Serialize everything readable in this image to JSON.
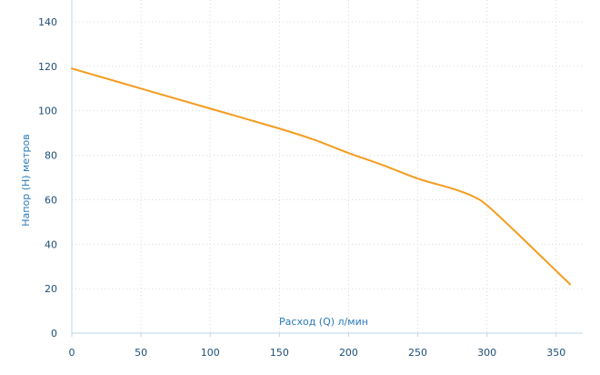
{
  "chart_data": {
    "type": "line",
    "title": "",
    "xlabel": "Расход (Q) л/мин",
    "ylabel": "Напор (H) метров",
    "xlim": [
      0,
      360
    ],
    "ylim": [
      0,
      140
    ],
    "xticks": [
      0,
      50,
      100,
      150,
      200,
      250,
      300,
      350
    ],
    "yticks": [
      0,
      20,
      40,
      60,
      80,
      100,
      120,
      140
    ],
    "grid": true,
    "legend": "none",
    "series": [
      {
        "color": "#f39c1f",
        "x": [
          0,
          50,
          100,
          150,
          175,
          200,
          225,
          250,
          275,
          290,
          300,
          320,
          340,
          360
        ],
        "y": [
          119,
          110,
          101,
          92,
          87,
          81,
          75.5,
          69.5,
          65,
          61.5,
          57.5,
          46,
          34,
          22
        ]
      }
    ]
  }
}
